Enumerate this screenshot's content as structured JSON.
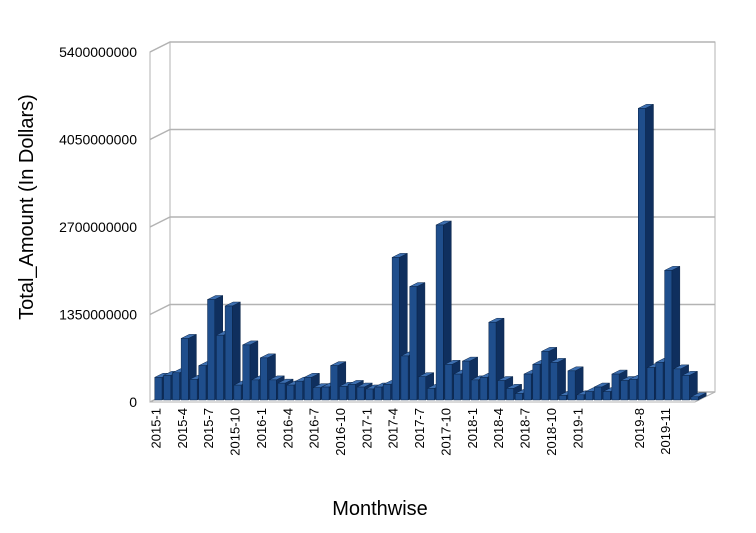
{
  "chart_data": {
    "type": "bar",
    "title": "",
    "xlabel": "Monthwise",
    "ylabel": "Total_Amount (In Dollars)",
    "ylim": [
      0,
      5400000000
    ],
    "yticks": [
      "0",
      "1350000000",
      "2700000000",
      "4050000000",
      "5400000000"
    ],
    "grid": true,
    "legend": "none",
    "bar_color": "#1f4e8c",
    "bar_top_color": "#3d6fb0",
    "bar_side_color": "#0f2f5e",
    "categories": [
      "2015-1",
      "2015-2",
      "2015-3",
      "2015-4",
      "2015-5",
      "2015-6",
      "2015-7",
      "2015-8",
      "2015-9",
      "2015-10",
      "2015-11",
      "2015-12",
      "2016-1",
      "2016-2",
      "2016-3",
      "2016-4",
      "2016-5",
      "2016-6",
      "2016-7",
      "2016-8",
      "2016-9",
      "2016-10",
      "2016-11",
      "2016-12",
      "2017-1",
      "2017-2",
      "2017-3",
      "2017-4",
      "2017-5",
      "2017-6",
      "2017-7",
      "2017-8",
      "2017-9",
      "2017-10",
      "2017-11",
      "2017-12",
      "2018-1",
      "2018-2",
      "2018-3",
      "2018-4",
      "2018-5",
      "2018-6",
      "2018-7",
      "2018-8",
      "2018-9",
      "2018-10",
      "2018-11",
      "2018-12",
      "2019-1",
      "2019-2",
      "2019-3",
      "2019-4",
      "2019-5",
      "2019-6",
      "2019-7",
      "2019-8",
      "2019-9",
      "2019-10",
      "2019-11",
      "2019-12",
      "2020-1",
      "2020-2"
    ],
    "x_tick_labels": [
      "2015-1",
      "",
      "",
      "2015-4",
      "",
      "",
      "2015-7",
      "",
      "",
      "2015-10",
      "",
      "",
      "2016-1",
      "",
      "",
      "2016-4",
      "",
      "",
      "2016-7",
      "",
      "",
      "2016-10",
      "",
      "",
      "2017-1",
      "",
      "",
      "2017-4",
      "",
      "",
      "2017-7",
      "",
      "",
      "2017-10",
      "",
      "",
      "2018-1",
      "",
      "",
      "2018-4",
      "",
      "",
      "2018-7",
      "",
      "",
      "2018-10",
      "",
      "",
      "2019-1",
      "",
      "",
      "",
      "",
      "",
      "",
      "2019-8",
      "",
      "",
      "2019-11",
      "",
      "",
      ""
    ],
    "values": [
      350000000,
      380000000,
      420000000,
      950000000,
      320000000,
      530000000,
      1550000000,
      1000000000,
      1450000000,
      230000000,
      850000000,
      310000000,
      650000000,
      310000000,
      260000000,
      230000000,
      290000000,
      350000000,
      190000000,
      200000000,
      530000000,
      210000000,
      240000000,
      200000000,
      170000000,
      200000000,
      240000000,
      2200000000,
      680000000,
      1750000000,
      360000000,
      180000000,
      2700000000,
      550000000,
      400000000,
      600000000,
      310000000,
      350000000,
      1200000000,
      300000000,
      180000000,
      100000000,
      400000000,
      550000000,
      750000000,
      580000000,
      70000000,
      450000000,
      80000000,
      130000000,
      200000000,
      130000000,
      400000000,
      300000000,
      320000000,
      4500000000,
      500000000,
      580000000,
      2000000000,
      480000000,
      380000000,
      50000000
    ]
  }
}
